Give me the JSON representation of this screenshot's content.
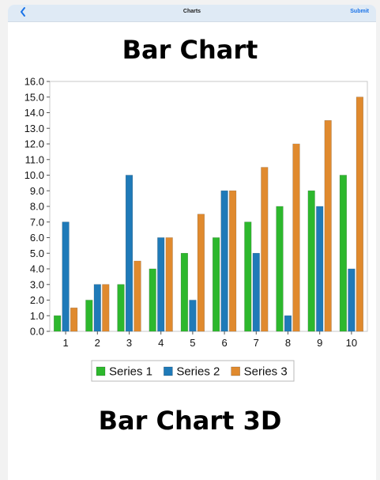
{
  "nav": {
    "back_icon": "chevron-left-icon",
    "title": "Charts",
    "submit_label": "Submit",
    "accent_color": "#1a73e8",
    "bar_color": "#dfeaf5"
  },
  "headings": {
    "chart1_title": "Bar Chart",
    "chart2_title": "Bar Chart 3D"
  },
  "chart_data": {
    "type": "bar",
    "title": "Bar Chart",
    "xlabel": "",
    "ylabel": "",
    "categories": [
      "1",
      "2",
      "3",
      "4",
      "5",
      "6",
      "7",
      "8",
      "9",
      "10"
    ],
    "ylim": [
      0,
      16
    ],
    "ytick_step": 1,
    "ytick_labels": [
      "0.0",
      "1.0",
      "2.0",
      "3.0",
      "4.0",
      "5.0",
      "6.0",
      "7.0",
      "8.0",
      "9.0",
      "10.0",
      "11.0",
      "12.0",
      "13.0",
      "14.0",
      "15.0",
      "16.0"
    ],
    "grid": false,
    "legend_position": "bottom-center",
    "series": [
      {
        "name": "Series 1",
        "color": "#2db82d",
        "values": [
          1,
          2,
          3,
          4,
          5,
          6,
          7,
          8,
          9,
          10
        ]
      },
      {
        "name": "Series 2",
        "color": "#1f7ab8",
        "values": [
          7,
          3,
          10,
          6,
          2,
          9,
          5,
          1,
          8,
          4
        ]
      },
      {
        "name": "Series 3",
        "color": "#e08a2e",
        "values": [
          1.5,
          3,
          4.5,
          6,
          7.5,
          9,
          10.5,
          12,
          13.5,
          15
        ]
      }
    ]
  }
}
